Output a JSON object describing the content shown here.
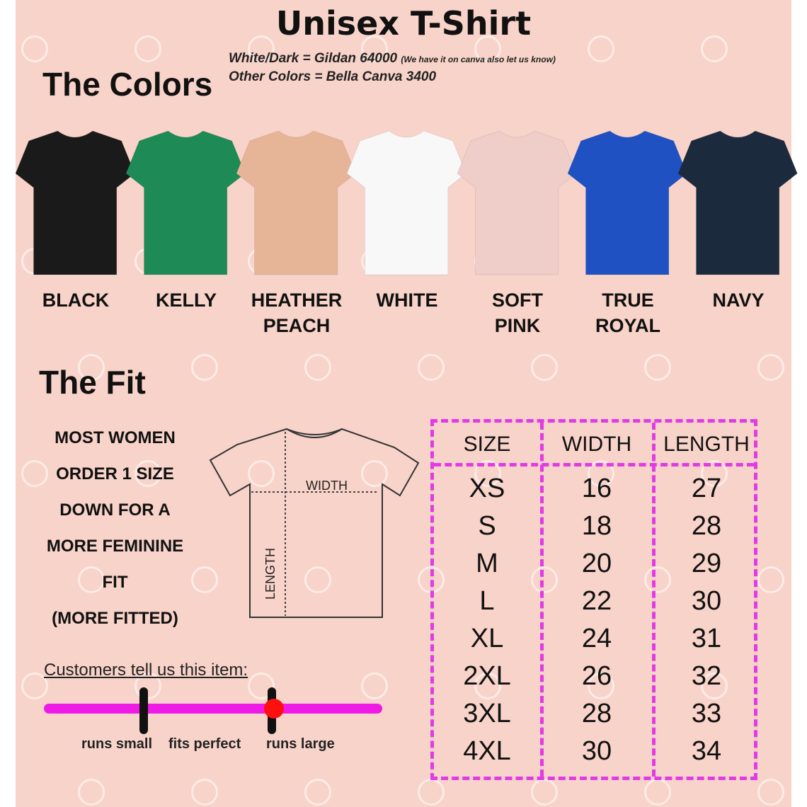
{
  "title": "Unisex T-Shirt",
  "brands": {
    "line1": "White/Dark = Gildan 64000",
    "line1_note": "(We have it on canva also let us know)",
    "line2": "Other Colors = Bella Canva 3400"
  },
  "colors_heading": "The Colors",
  "colors": [
    {
      "label": "BLACK",
      "hex": "#1a1a1a"
    },
    {
      "label": "KELLY",
      "hex": "#1e8a56"
    },
    {
      "label": "HEATHER PEACH",
      "hex": "#e6b497"
    },
    {
      "label": "WHITE",
      "hex": "#f8f8f8"
    },
    {
      "label": "SOFT PINK",
      "hex": "#efcdc9"
    },
    {
      "label": "TRUE ROYAL",
      "hex": "#1f51c2"
    },
    {
      "label": "NAVY",
      "hex": "#1c2a3d"
    }
  ],
  "fit_heading": "The Fit",
  "fit_note": [
    "MOST WOMEN",
    "ORDER 1 SIZE",
    "DOWN FOR A",
    "MORE FEMININE",
    "FIT",
    "(MORE FITTED)"
  ],
  "diagram": {
    "width": "WIDTH",
    "length": "LENGTH"
  },
  "size_table": {
    "headers": [
      "SIZE",
      "WIDTH",
      "LENGTH"
    ],
    "rows": [
      [
        "XS",
        "16",
        "27"
      ],
      [
        "S",
        "18",
        "28"
      ],
      [
        "M",
        "20",
        "29"
      ],
      [
        "L",
        "22",
        "30"
      ],
      [
        "XL",
        "24",
        "31"
      ],
      [
        "2XL",
        "26",
        "32"
      ],
      [
        "3XL",
        "28",
        "33"
      ],
      [
        "4XL",
        "30",
        "34"
      ]
    ],
    "border_color": "#e23be6"
  },
  "customer_fit": {
    "heading": "Customers tell us this item:",
    "labels": [
      "runs small",
      "fits perfect",
      "runs large"
    ],
    "value": 0.68,
    "bar_color": "#ee1be6",
    "marker_color": "#ff1010"
  }
}
